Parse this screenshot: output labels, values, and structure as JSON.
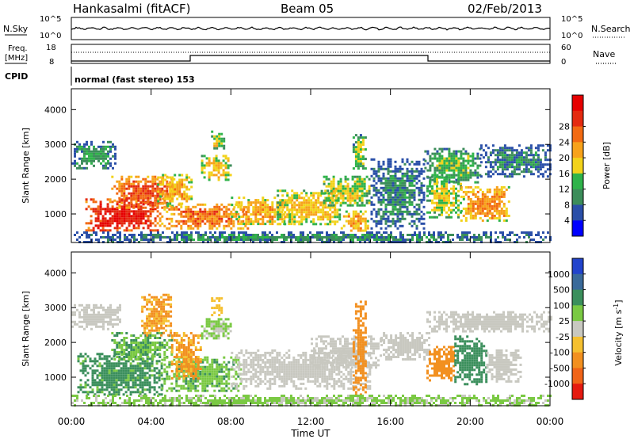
{
  "header": {
    "station": "Hankasalmi (fitACF)",
    "beam": "Beam 05",
    "date": "02/Feb/2013"
  },
  "noise_panel": {
    "left_label": "N.Sky",
    "right_label": "N.Search",
    "ticks": [
      "10^5",
      "10^0"
    ]
  },
  "freq_panel": {
    "left_label_line1": "Freq.",
    "left_label_line2": "[MHz]",
    "left_ticks": [
      "18",
      "8"
    ],
    "right_label": "Nave",
    "right_ticks": [
      "60",
      "0"
    ]
  },
  "cpid": {
    "label": "CPID",
    "mode_text": "normal (fast stereo) 153"
  },
  "colors": {
    "power_scale": [
      "#0000ff",
      "#2a4fa8",
      "#3c8d5a",
      "#2fb34a",
      "#f2d21a",
      "#f7a21a",
      "#f26a12",
      "#e42a10",
      "#e60000"
    ],
    "velocity_scale": [
      "#2244cc",
      "#3a6a9a",
      "#3b8f5c",
      "#7ac943",
      "#c8c8c0",
      "#f5c030",
      "#f29020",
      "#f06418",
      "#e51a10"
    ]
  },
  "chart_data": [
    {
      "type": "heatmap",
      "title": "",
      "parameter": "Power",
      "xlabel": "Time UT",
      "ylabel": "Slant Range [km]",
      "x_ticks": [
        "00:00",
        "04:00",
        "08:00",
        "12:00",
        "16:00",
        "20:00",
        "00:00"
      ],
      "xlim_hours": [
        0,
        24
      ],
      "y_ticks": [
        1000,
        2000,
        3000,
        4000
      ],
      "ylim_km": [
        180,
        4600
      ],
      "colorbar": {
        "label": "Power [dB]",
        "ticks": [
          4,
          8,
          12,
          16,
          20,
          24,
          28
        ]
      },
      "regions": [
        {
          "t0": 0.7,
          "t1": 4.4,
          "r0": 500,
          "r1": 1450,
          "v": 28
        },
        {
          "t0": 2.0,
          "t1": 5.2,
          "r0": 1150,
          "r1": 2100,
          "v": 24
        },
        {
          "t0": 4.3,
          "t1": 6.0,
          "r0": 1250,
          "r1": 2150,
          "v": 18
        },
        {
          "t0": 4.5,
          "t1": 8.8,
          "r0": 600,
          "r1": 1300,
          "v": 22
        },
        {
          "t0": 6.5,
          "t1": 8.0,
          "r0": 2000,
          "r1": 2700,
          "v": 16
        },
        {
          "t0": 7.0,
          "t1": 7.6,
          "r0": 2900,
          "r1": 3400,
          "v": 14
        },
        {
          "t0": 8.0,
          "t1": 11.0,
          "r0": 700,
          "r1": 1500,
          "v": 18
        },
        {
          "t0": 10.3,
          "t1": 13.5,
          "r0": 700,
          "r1": 1700,
          "v": 16
        },
        {
          "t0": 12.5,
          "t1": 15.0,
          "r0": 1250,
          "r1": 2100,
          "v": 14
        },
        {
          "t0": 13.5,
          "t1": 14.9,
          "r0": 500,
          "r1": 1100,
          "v": 18
        },
        {
          "t0": 14.1,
          "t1": 14.7,
          "r0": 2300,
          "r1": 3300,
          "v": 12
        },
        {
          "t0": 15.0,
          "t1": 17.7,
          "r0": 600,
          "r1": 2600,
          "v": 6
        },
        {
          "t0": 0.0,
          "t1": 2.2,
          "r0": 2300,
          "r1": 3100,
          "v": 8
        },
        {
          "t0": 17.7,
          "t1": 20.5,
          "r0": 1900,
          "r1": 2900,
          "v": 10
        },
        {
          "t0": 20.5,
          "t1": 24.0,
          "r0": 2100,
          "r1": 3000,
          "v": 6
        },
        {
          "t0": 17.8,
          "t1": 19.5,
          "r0": 900,
          "r1": 2100,
          "v": 14
        },
        {
          "t0": 19.5,
          "t1": 22.0,
          "r0": 800,
          "r1": 1800,
          "v": 20
        },
        {
          "t0": 0.0,
          "t1": 24.0,
          "r0": 200,
          "r1": 500,
          "v": 6
        }
      ]
    },
    {
      "type": "heatmap",
      "title": "",
      "parameter": "Velocity",
      "xlabel": "Time UT",
      "ylabel": "Slant Range [km]",
      "x_ticks": [
        "00:00",
        "04:00",
        "08:00",
        "12:00",
        "16:00",
        "20:00",
        "00:00"
      ],
      "xlim_hours": [
        0,
        24
      ],
      "y_ticks": [
        1000,
        2000,
        3000,
        4000
      ],
      "ylim_km": [
        180,
        4600
      ],
      "colorbar": {
        "label": "Velocity [m s^-1]",
        "ticks": [
          "1000",
          "500",
          "100",
          "25",
          "-25",
          "-100",
          "-500",
          "-1000"
        ]
      },
      "regions": [
        {
          "t0": 0.0,
          "t1": 2.5,
          "r0": 2400,
          "r1": 3100,
          "v": 0
        },
        {
          "t0": 0.3,
          "t1": 4.5,
          "r0": 500,
          "r1": 1700,
          "v": 150
        },
        {
          "t0": 2.0,
          "t1": 5.0,
          "r0": 1500,
          "r1": 2300,
          "v": 100
        },
        {
          "t0": 3.5,
          "t1": 5.0,
          "r0": 2200,
          "r1": 3400,
          "v": -120
        },
        {
          "t0": 4.5,
          "t1": 8.5,
          "r0": 600,
          "r1": 1600,
          "v": 80
        },
        {
          "t0": 5.0,
          "t1": 6.5,
          "r0": 1000,
          "r1": 2300,
          "v": -120
        },
        {
          "t0": 6.5,
          "t1": 8.0,
          "r0": 2100,
          "r1": 2700,
          "v": 40
        },
        {
          "t0": 7.0,
          "t1": 7.6,
          "r0": 2800,
          "r1": 3300,
          "v": -60
        },
        {
          "t0": 8.0,
          "t1": 15.0,
          "r0": 700,
          "r1": 1800,
          "v": 0
        },
        {
          "t0": 12.0,
          "t1": 15.5,
          "r0": 1300,
          "r1": 2200,
          "v": 0
        },
        {
          "t0": 14.1,
          "t1": 14.8,
          "r0": 400,
          "r1": 3200,
          "v": -300
        },
        {
          "t0": 15.5,
          "t1": 18.0,
          "r0": 1500,
          "r1": 2300,
          "v": 0
        },
        {
          "t0": 17.8,
          "t1": 24.0,
          "r0": 2300,
          "r1": 2900,
          "v": 0
        },
        {
          "t0": 17.8,
          "t1": 19.2,
          "r0": 900,
          "r1": 1900,
          "v": -200
        },
        {
          "t0": 19.2,
          "t1": 20.8,
          "r0": 800,
          "r1": 2200,
          "v": 300
        },
        {
          "t0": 20.8,
          "t1": 22.5,
          "r0": 900,
          "r1": 1800,
          "v": 0
        },
        {
          "t0": 0.0,
          "t1": 24.0,
          "r0": 200,
          "r1": 500,
          "v": 40
        }
      ]
    }
  ]
}
